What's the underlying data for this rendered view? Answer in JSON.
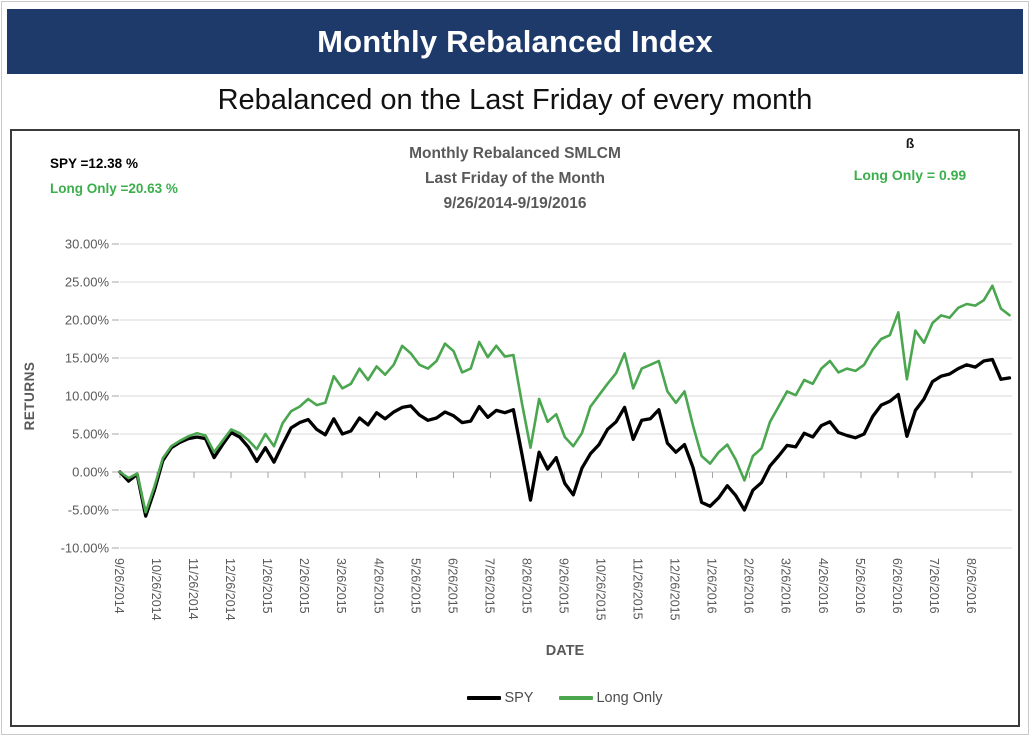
{
  "banner": {
    "title": "Monthly Rebalanced Index",
    "bg_color": "#1e3a6a",
    "text_color": "#ffffff"
  },
  "subtitle": "Rebalanced on the Last Friday of every month",
  "chart": {
    "annotations": {
      "spy_return": "SPY =12.38 %",
      "long_only_return": "Long Only =20.63 %",
      "beta_symbol": "ß",
      "beta_value": "Long Only = 0.99"
    },
    "title_lines": [
      "Monthly Rebalanced SMLCM",
      "Last Friday of the Month",
      "9/26/2014-9/19/2016"
    ],
    "y_axis_label": "RETURNS",
    "colors": {
      "spy_line": "#000000",
      "long_only_line": "#4aa64f",
      "green_text": "#3cae4c",
      "grid": "#d9d9d9",
      "tick": "#a6a6a6",
      "axis_text": "#595959"
    }
  },
  "chart_data": {
    "type": "line",
    "title": "Monthly Rebalanced SMLCM Last Friday of the Month 9/26/2014-9/19/2016",
    "xlabel": "DATE",
    "ylabel": "RETURNS",
    "ylim": [
      -10,
      30
    ],
    "grid": true,
    "legend_position": "bottom",
    "y_ticks": [
      "30.00%",
      "25.00%",
      "20.00%",
      "15.00%",
      "10.00%",
      "5.00%",
      "0.00%",
      "-5.00%",
      "-10.00%"
    ],
    "y_tick_values": [
      30,
      25,
      20,
      15,
      10,
      5,
      0,
      -5,
      -10
    ],
    "x_tick_labels": [
      "9/26/2014",
      "10/26/2014",
      "11/26/2014",
      "12/26/2014",
      "1/26/2015",
      "2/26/2015",
      "3/26/2015",
      "4/26/2015",
      "5/26/2015",
      "6/26/2015",
      "7/26/2015",
      "8/26/2015",
      "9/26/2015",
      "10/26/2015",
      "11/26/2015",
      "12/26/2015",
      "1/26/2016",
      "2/26/2016",
      "3/26/2016",
      "4/26/2016",
      "5/26/2016",
      "6/26/2016",
      "7/26/2016",
      "8/26/2016"
    ],
    "x_range": [
      "9/26/2014",
      "9/19/2016"
    ],
    "frequency": "weekly",
    "units": "percent",
    "series": [
      {
        "name": "SPY",
        "color": "#000000",
        "final_value": 12.38,
        "values": [
          0.0,
          -1.2,
          -0.3,
          -5.8,
          -2.5,
          1.5,
          3.2,
          3.9,
          4.4,
          4.6,
          4.4,
          1.9,
          3.6,
          5.2,
          4.6,
          3.3,
          1.4,
          3.2,
          1.3,
          3.6,
          5.8,
          6.5,
          6.9,
          5.6,
          4.9,
          7.0,
          5.0,
          5.4,
          7.1,
          6.2,
          7.8,
          7.0,
          7.9,
          8.5,
          8.7,
          7.5,
          6.8,
          7.1,
          7.9,
          7.4,
          6.5,
          6.7,
          8.6,
          7.2,
          8.1,
          7.8,
          8.2,
          2.3,
          -3.7,
          2.6,
          0.4,
          1.9,
          -1.5,
          -3.0,
          0.5,
          2.4,
          3.6,
          5.6,
          6.6,
          8.5,
          4.3,
          6.8,
          7.0,
          8.2,
          3.8,
          2.6,
          3.6,
          0.6,
          -4.0,
          -4.5,
          -3.4,
          -1.8,
          -3.1,
          -5.0,
          -2.4,
          -1.4,
          0.8,
          2.1,
          3.5,
          3.3,
          5.1,
          4.6,
          6.1,
          6.6,
          5.2,
          4.8,
          4.5,
          5.0,
          7.3,
          8.8,
          9.3,
          10.2,
          4.7,
          8.1,
          9.6,
          11.9,
          12.6,
          12.9,
          13.6,
          14.1,
          13.8,
          14.6,
          14.8,
          12.2,
          12.38
        ]
      },
      {
        "name": "Long Only",
        "color": "#4aa64f",
        "final_value": 20.63,
        "values": [
          0.0,
          -0.8,
          -0.2,
          -5.3,
          -2.0,
          1.8,
          3.4,
          4.1,
          4.7,
          5.1,
          4.8,
          2.6,
          4.1,
          5.6,
          5.1,
          4.2,
          3.0,
          5.0,
          3.4,
          6.4,
          8.0,
          8.6,
          9.6,
          8.8,
          9.1,
          12.6,
          11.0,
          11.6,
          13.6,
          12.1,
          13.9,
          12.8,
          14.1,
          16.6,
          15.6,
          14.1,
          13.6,
          14.6,
          16.9,
          15.9,
          13.1,
          13.6,
          17.1,
          15.1,
          16.6,
          15.2,
          15.4,
          9.0,
          3.2,
          9.6,
          6.6,
          7.6,
          4.6,
          3.4,
          5.1,
          8.6,
          10.1,
          11.6,
          13.0,
          15.6,
          11.0,
          13.6,
          14.1,
          14.6,
          10.6,
          9.1,
          10.6,
          6.1,
          2.1,
          1.1,
          2.6,
          3.6,
          1.6,
          -1.1,
          2.1,
          3.1,
          6.6,
          8.6,
          10.6,
          10.1,
          12.1,
          11.6,
          13.6,
          14.6,
          13.1,
          13.6,
          13.3,
          14.1,
          16.1,
          17.5,
          18.0,
          21.0,
          12.2,
          18.6,
          17.0,
          19.6,
          20.6,
          20.3,
          21.6,
          22.1,
          21.9,
          22.6,
          24.5,
          21.5,
          20.63
        ]
      }
    ]
  },
  "legend": {
    "items": [
      "SPY",
      "Long Only"
    ]
  }
}
